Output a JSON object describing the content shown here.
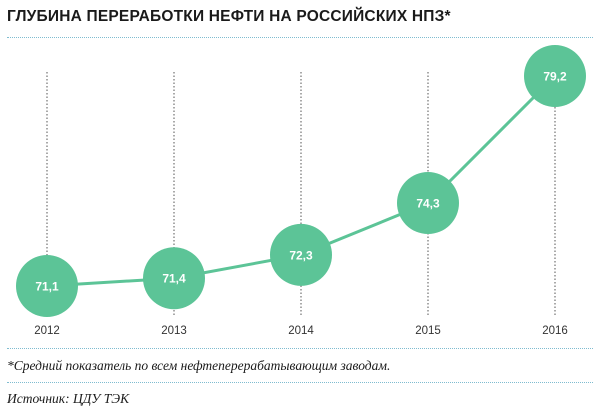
{
  "title": "ГЛУБИНА ПЕРЕРАБОТКИ НЕФТИ НА РОССИЙСКИХ НПЗ*",
  "footnote": "*Средний показатель по всем нефтеперерабатывающим заводам.",
  "source": "Источник: ЦДУ ТЭК",
  "colors": {
    "accent": "#5cc497",
    "divider": "#7fbcd0",
    "gridline": "#555555",
    "text": "#1a1a1a",
    "label": "#ffffff"
  },
  "chart_data": {
    "type": "line",
    "title": "ГЛУБИНА ПЕРЕРАБОТКИ НЕФТИ НА РОССИЙСКИХ НПЗ*",
    "categories": [
      "2012",
      "2013",
      "2014",
      "2015",
      "2016"
    ],
    "values": [
      71.1,
      71.4,
      72.3,
      74.3,
      79.2
    ],
    "labels": [
      "71,1",
      "71,4",
      "72,3",
      "74,3",
      "79,2"
    ],
    "xlabel": "",
    "ylabel": "",
    "grid": "vertical dotted",
    "legend": "none"
  }
}
